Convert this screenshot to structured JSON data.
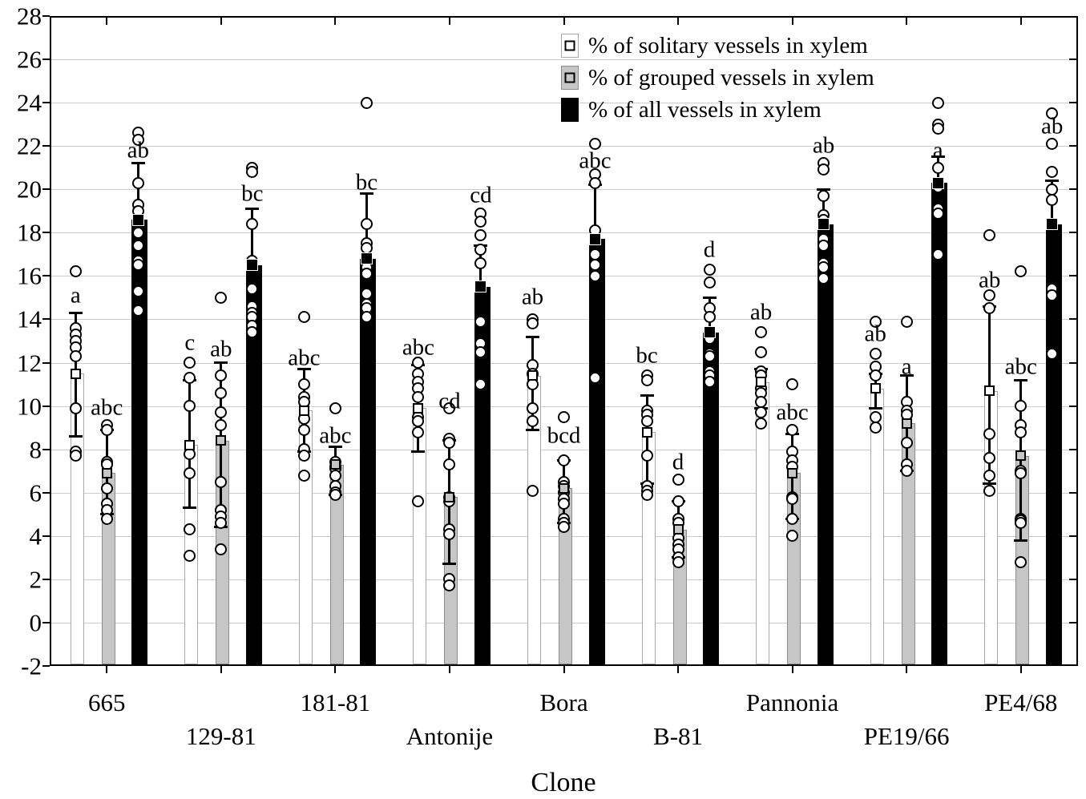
{
  "chart_data": {
    "type": "bar",
    "title": "",
    "xlabel": "Clone",
    "ylabel": "",
    "ylim": [
      -2,
      28
    ],
    "y_ticks": [
      28,
      26,
      24,
      22,
      20,
      18,
      16,
      14,
      12,
      10,
      8,
      6,
      4,
      2,
      0,
      -2
    ],
    "grid": "horizontal",
    "legend_position": "top-center",
    "categories": [
      "665",
      "129-81",
      "181-81",
      "Antonije",
      "Bora",
      "B-81",
      "Pannonia",
      "PE19/66",
      "PE4/68"
    ],
    "category_label_rows": [
      0,
      1,
      0,
      1,
      0,
      1,
      0,
      1,
      0
    ],
    "series": [
      {
        "name": "% of solitary vessels in xylem",
        "fill": "#ffffff",
        "means": [
          11.5,
          8.2,
          9.8,
          9.9,
          11.4,
          8.8,
          11.1,
          10.8,
          10.7
        ],
        "whisker_low": [
          8.6,
          5.3,
          7.9,
          7.9,
          8.9,
          6.4,
          9.9,
          9.9,
          6.4
        ],
        "whisker_high": [
          14.3,
          11.2,
          11.7,
          11.9,
          13.2,
          10.5,
          11.7,
          11.5,
          14.6
        ],
        "letters": [
          "a",
          "c",
          "abc",
          "abc",
          "ab",
          "bc",
          "ab",
          "ab",
          "ab"
        ],
        "letter_y": [
          15.1,
          12.9,
          12.2,
          12.7,
          15.0,
          12.3,
          14.3,
          13.3,
          15.8
        ],
        "points": [
          [
            16.2,
            13.6,
            13.3,
            13.0,
            12.7,
            12.3,
            9.9,
            7.9,
            7.7
          ],
          [
            12.0,
            11.3,
            10.0,
            7.8,
            6.9,
            4.3,
            3.1
          ],
          [
            14.1,
            11.0,
            10.4,
            10.2,
            9.4,
            8.9,
            8.0,
            7.7,
            6.8
          ],
          [
            12.0,
            11.5,
            11.1,
            10.8,
            10.4,
            9.5,
            9.3,
            8.8,
            5.6
          ],
          [
            14.0,
            13.8,
            11.9,
            11.5,
            11.0,
            9.9,
            9.3,
            6.1
          ],
          [
            11.4,
            11.2,
            9.8,
            9.6,
            9.3,
            7.7,
            6.3,
            6.1,
            5.9
          ],
          [
            13.4,
            12.5,
            11.6,
            11.4,
            10.8,
            10.6,
            10.2,
            9.7,
            9.2
          ],
          [
            13.9,
            12.4,
            11.8,
            11.4,
            9.5,
            9.0
          ],
          [
            17.9,
            15.1,
            14.5,
            8.7,
            7.6,
            6.8,
            6.1
          ]
        ]
      },
      {
        "name": "% of grouped vessels in xylem",
        "fill": "#c6c6c6",
        "means": [
          6.9,
          8.4,
          7.3,
          5.8,
          6.2,
          4.3,
          6.9,
          9.2,
          7.7
        ],
        "whisker_low": [
          5.0,
          4.4,
          5.9,
          2.7,
          4.6,
          3.0,
          4.8,
          7.0,
          3.8
        ],
        "whisker_high": [
          8.9,
          12.0,
          8.1,
          8.4,
          7.5,
          5.6,
          8.7,
          11.4,
          11.2
        ],
        "letters": [
          "abc",
          "ab",
          "abc",
          "cd",
          "bcd",
          "d",
          "abc",
          "a",
          "abc"
        ],
        "letter_y": [
          9.9,
          12.6,
          8.6,
          10.2,
          8.6,
          7.4,
          9.7,
          11.8,
          11.8
        ],
        "points": [
          [
            9.1,
            8.9,
            7.4,
            7.3,
            6.2,
            5.5,
            5.2,
            4.8
          ],
          [
            15.0,
            11.4,
            10.6,
            9.7,
            9.1,
            6.5,
            5.2,
            4.9,
            4.6,
            3.4
          ],
          [
            9.9,
            7.4,
            7.2,
            7.1,
            6.8,
            6.3,
            6.0,
            5.9
          ],
          [
            9.9,
            8.5,
            8.3,
            7.3,
            5.8,
            5.6,
            4.3,
            4.1,
            2.0,
            1.7
          ],
          [
            9.5,
            7.5,
            6.5,
            6.3,
            6.0,
            5.7,
            5.5,
            4.8,
            4.6,
            4.4
          ],
          [
            6.6,
            5.6,
            4.8,
            4.6,
            3.9,
            3.6,
            3.4,
            3.0,
            2.8
          ],
          [
            11.0,
            8.9,
            7.9,
            7.5,
            7.2,
            5.8,
            5.7,
            4.8,
            4.0
          ],
          [
            13.9,
            10.2,
            9.8,
            9.6,
            8.3,
            7.3,
            7.0
          ],
          [
            16.2,
            10.0,
            9.1,
            8.8,
            7.0,
            6.9,
            4.8,
            4.7,
            4.6,
            2.8
          ]
        ]
      },
      {
        "name": "% of all vessels in xylem",
        "fill": "#000000",
        "means": [
          18.6,
          16.5,
          16.8,
          15.5,
          17.7,
          13.4,
          18.4,
          20.3,
          18.4
        ],
        "whisker_low": [
          null,
          null,
          null,
          null,
          null,
          null,
          null,
          null,
          null
        ],
        "whisker_high": [
          21.2,
          19.1,
          19.8,
          17.4,
          20.2,
          15.0,
          20.0,
          21.5,
          20.4
        ],
        "letters": [
          "ab",
          "bc",
          "bc",
          "cd",
          "abc",
          "d",
          "ab",
          "a",
          "ab"
        ],
        "letter_y": [
          21.8,
          19.8,
          20.3,
          19.7,
          21.3,
          17.2,
          22.0,
          21.8,
          22.9
        ],
        "points": [
          [
            22.6,
            22.3,
            20.3,
            19.3,
            19.0,
            18.0,
            17.4,
            16.7,
            16.5,
            15.3,
            14.4
          ],
          [
            21.0,
            20.8,
            18.4,
            16.7,
            15.4,
            14.6,
            14.3,
            14.1,
            13.7,
            13.4
          ],
          [
            24.0,
            18.4,
            17.5,
            17.3,
            16.4,
            16.1,
            15.2,
            14.7,
            14.5,
            14.1
          ],
          [
            18.9,
            18.5,
            17.9,
            17.2,
            16.6,
            13.9,
            12.9,
            12.5,
            11.0
          ],
          [
            22.1,
            20.7,
            20.3,
            18.1,
            17.0,
            16.5,
            16.0,
            11.3
          ],
          [
            16.3,
            15.7,
            14.5,
            14.1,
            13.1,
            12.4,
            12.3,
            11.6,
            11.4,
            11.1
          ],
          [
            21.2,
            20.9,
            19.7,
            18.8,
            18.6,
            17.7,
            17.4,
            16.6,
            16.4,
            15.9
          ],
          [
            24.0,
            23.0,
            22.8,
            21.0,
            20.1,
            19.1,
            18.9,
            17.0
          ],
          [
            23.5,
            22.1,
            20.8,
            20.0,
            19.5,
            15.4,
            15.1,
            12.4
          ]
        ]
      }
    ],
    "colors": {
      "axis": "#000000",
      "gridline": "#cccccc",
      "solitary_fill": "#ffffff",
      "grouped_fill": "#c6c6c6",
      "all_fill": "#000000"
    }
  }
}
